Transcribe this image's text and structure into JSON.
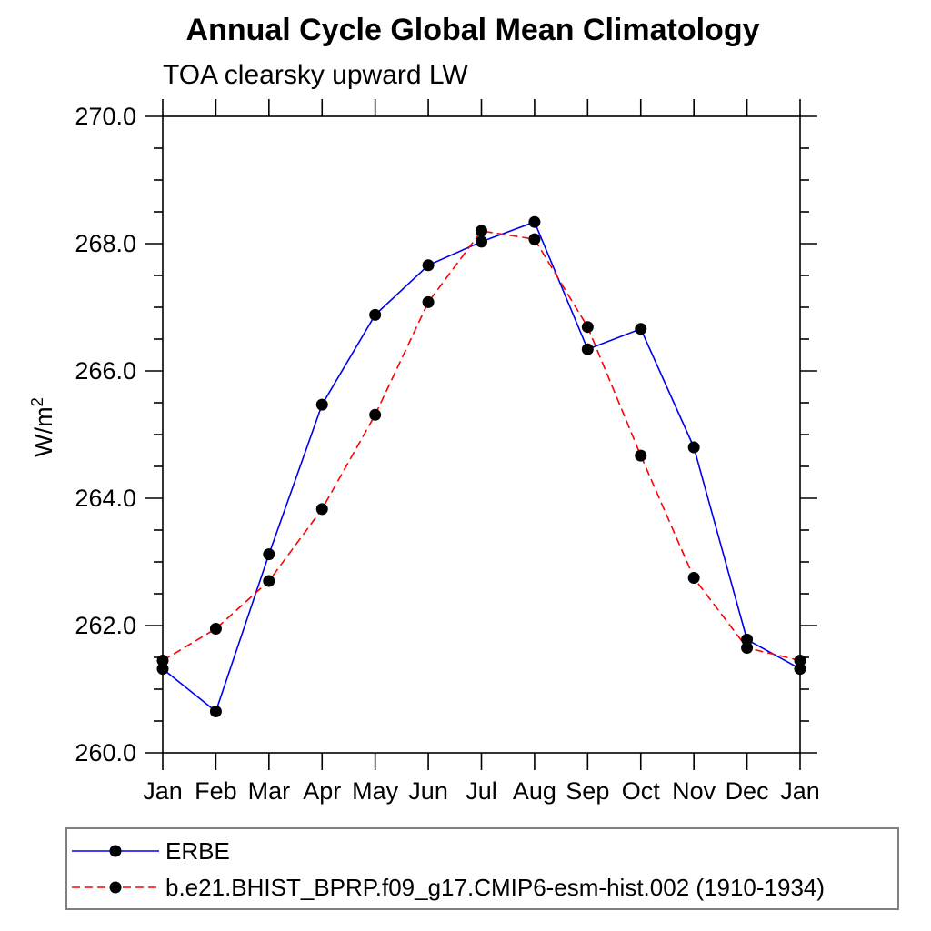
{
  "chart_data": {
    "type": "line",
    "title": "Annual Cycle Global Mean Climatology",
    "subtitle": "TOA clearsky upward LW",
    "ylabel": "W/m",
    "ylabel_superscript": "2",
    "categories": [
      "Jan",
      "Feb",
      "Mar",
      "Apr",
      "May",
      "Jun",
      "Jul",
      "Aug",
      "Sep",
      "Oct",
      "Nov",
      "Dec",
      "Jan"
    ],
    "series": [
      {
        "name": "ERBE",
        "color": "#0000ee",
        "line_style": "solid",
        "marker": "filled-circle",
        "values": [
          261.32,
          260.65,
          263.12,
          265.47,
          266.88,
          267.66,
          268.03,
          268.34,
          266.34,
          266.66,
          264.8,
          261.78,
          261.32
        ]
      },
      {
        "name": "b.e21.BHIST_BPRP.f09_g17.CMIP6-esm-hist.002 (1910-1934)",
        "color": "#ff0000",
        "line_style": "dashed",
        "marker": "filled-circle",
        "values": [
          261.45,
          261.95,
          262.7,
          263.83,
          265.31,
          267.08,
          268.2,
          268.07,
          266.69,
          264.67,
          262.75,
          261.65,
          261.45
        ]
      }
    ],
    "ylim": [
      260.0,
      270.0
    ],
    "y_major_step": 2.0,
    "y_minor_step": 0.5,
    "y_tick_labels": [
      "260.0",
      "262.0",
      "264.0",
      "266.0",
      "268.0",
      "270.0"
    ],
    "grid": false,
    "legend_position": "bottom-left-box",
    "marker_color": "#000000",
    "axis_color": "#000000"
  }
}
